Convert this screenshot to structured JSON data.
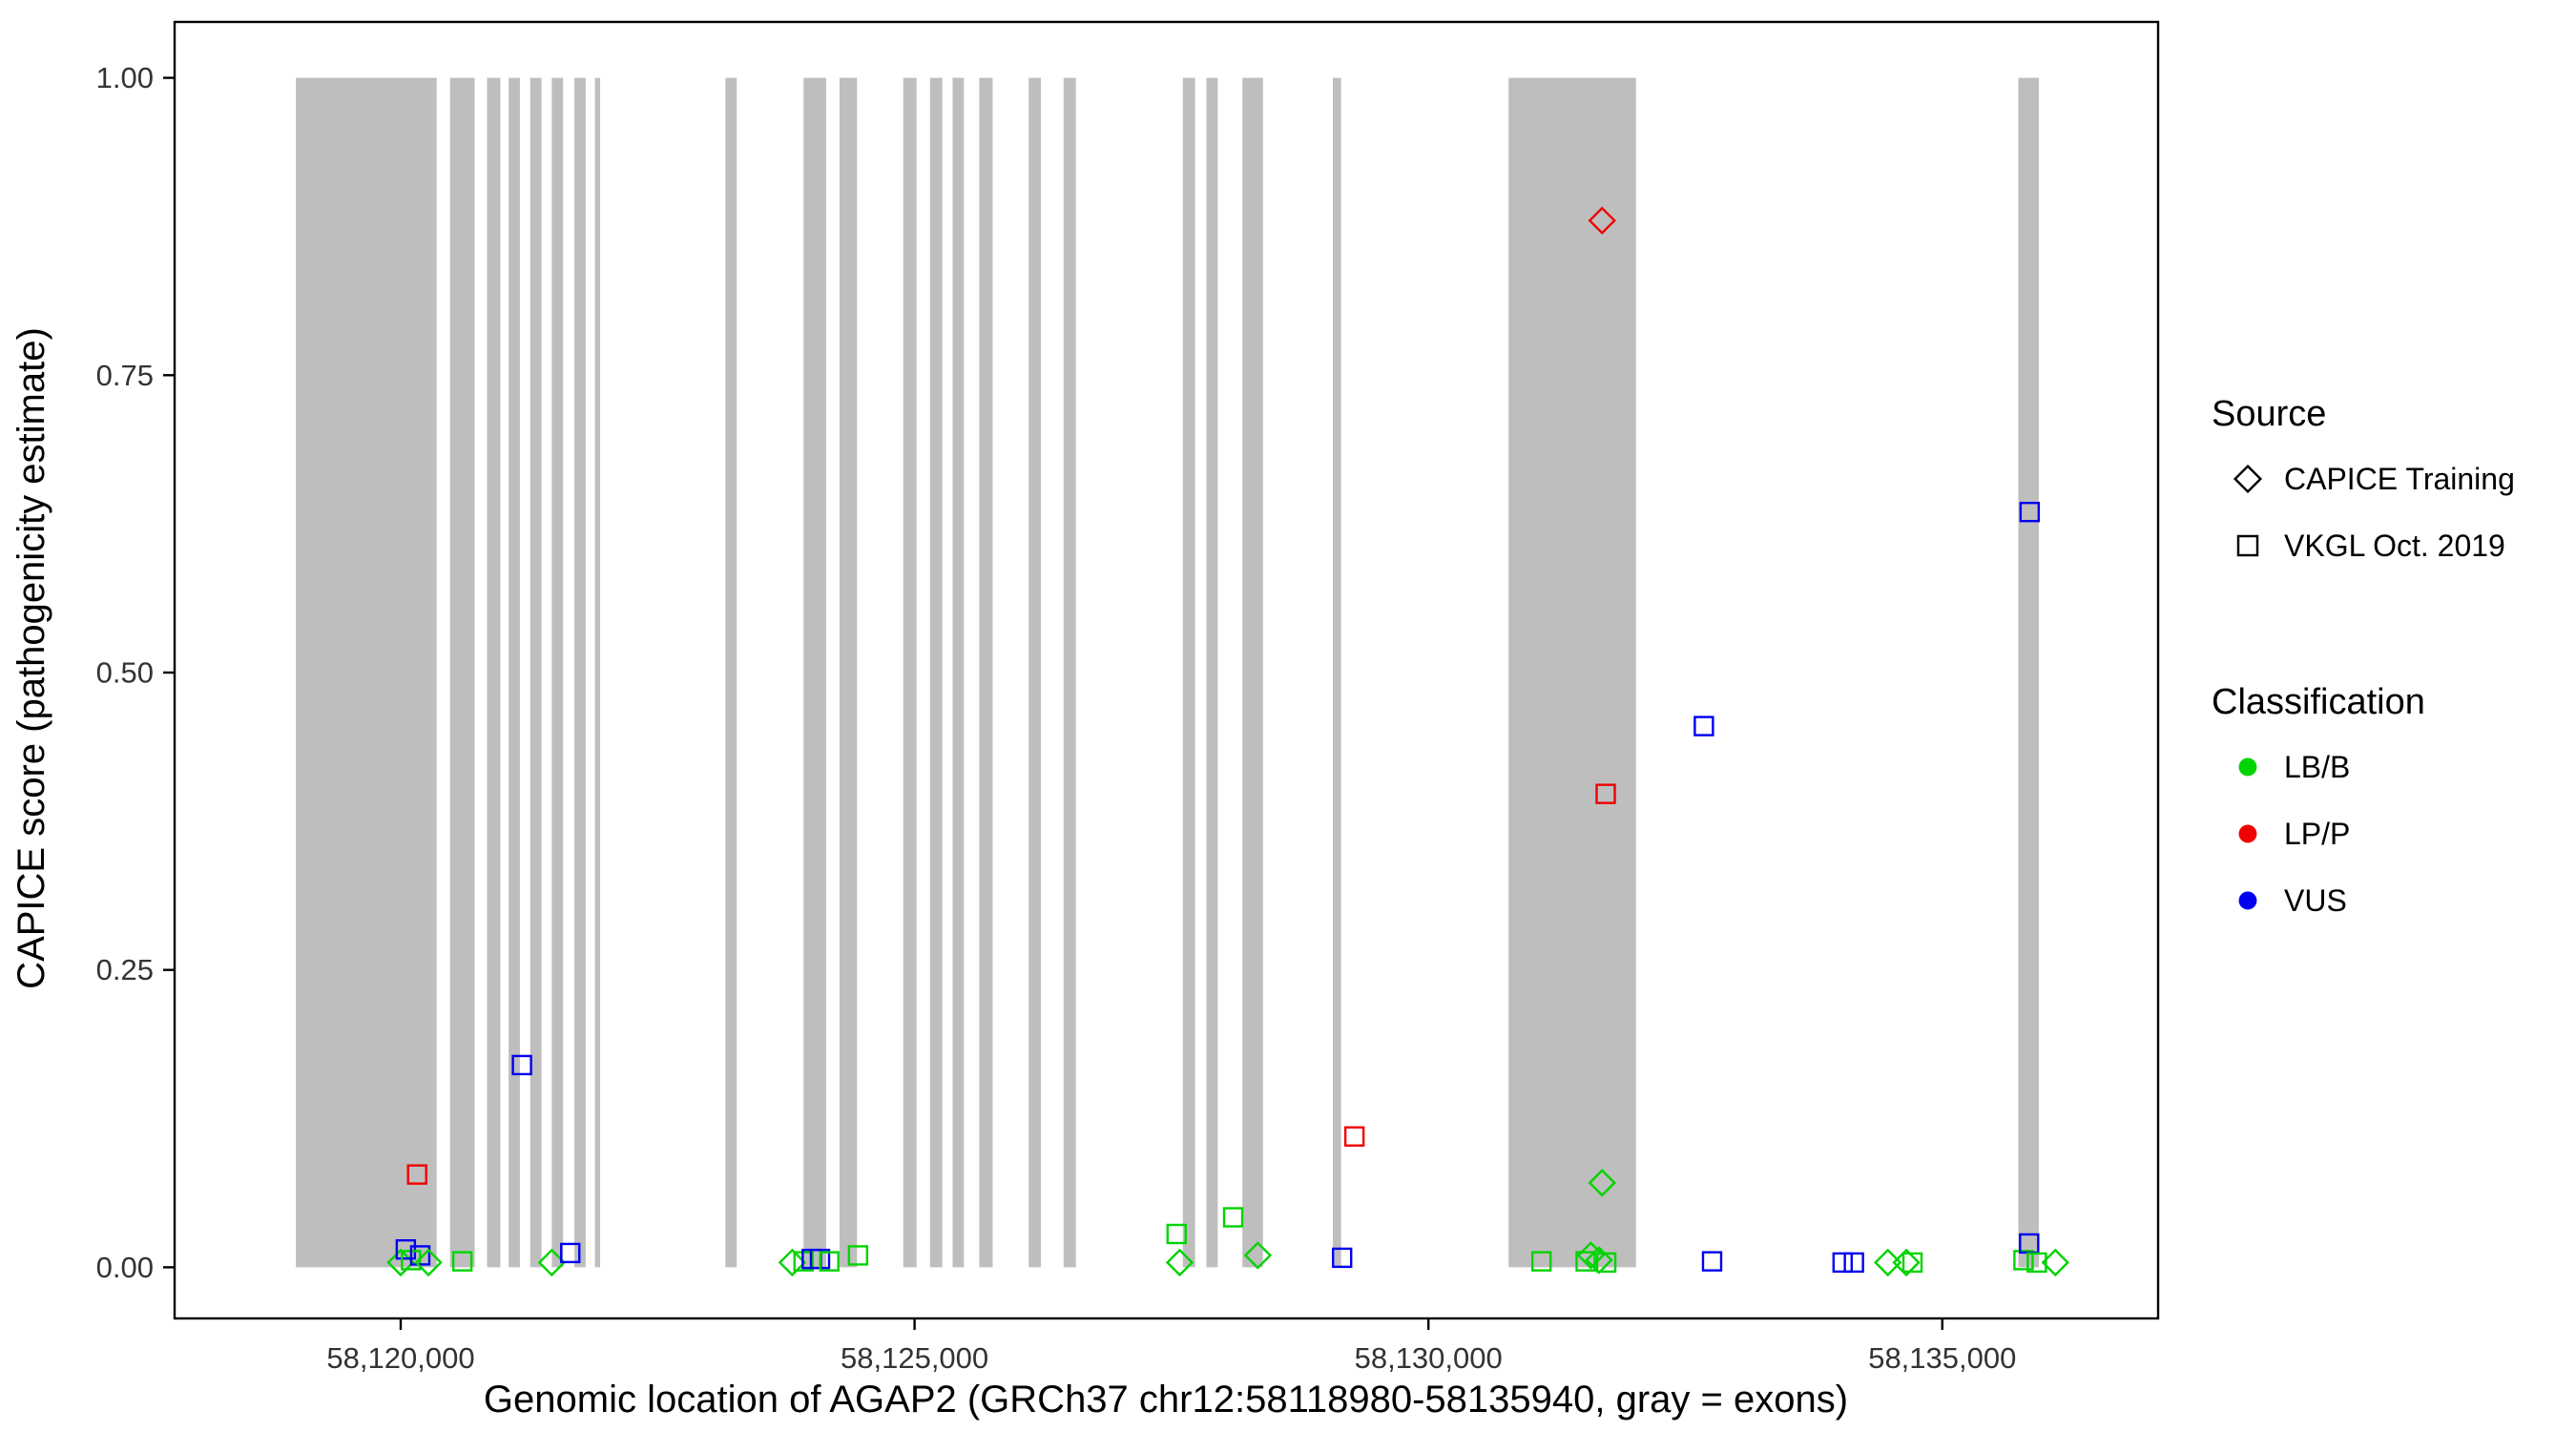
{
  "legend": {
    "source": {
      "title": "Source",
      "items": [
        {
          "shape": "diamond",
          "label": "CAPICE Training"
        },
        {
          "shape": "square",
          "label": "VKGL Oct. 2019"
        }
      ]
    },
    "classification": {
      "title": "Classification",
      "items": [
        {
          "color_key": "LB/B",
          "label": "LB/B"
        },
        {
          "color_key": "LP/P",
          "label": "LP/P"
        },
        {
          "color_key": "VUS",
          "label": "VUS"
        }
      ]
    }
  },
  "chart_data": {
    "type": "scatter",
    "title": "",
    "xlabel": "Genomic location of AGAP2 (GRCh37 chr12:58118980-58135940, gray = exons)",
    "ylabel": "CAPICE score (pathogenicity estimate)",
    "xlim": [
      58117800,
      58137100
    ],
    "ylim": [
      -0.043,
      1.047
    ],
    "x_tick_values": [
      58120000,
      58125000,
      58130000,
      58135000
    ],
    "x_tick_labels": [
      "58,120,000",
      "58,125,000",
      "58,130,000",
      "58,135,000"
    ],
    "y_tick_values": [
      0,
      0.25,
      0.5,
      0.75,
      1.0
    ],
    "y_tick_labels": [
      "0.00",
      "0.25",
      "0.50",
      "0.75",
      "1.00"
    ],
    "legend_position": "right",
    "grid": false,
    "exon_color": "#BEBEBE",
    "colors": {
      "LB/B": "#00D400",
      "LP/P": "#F00000",
      "VUS": "#0000F0"
    },
    "shapes": {
      "CAPICE Training": "diamond",
      "VKGL Oct. 2019": "square"
    },
    "exons": [
      [
        58118980,
        58120350
      ],
      [
        58120480,
        58120720
      ],
      [
        58120840,
        58120970
      ],
      [
        58121050,
        58121160
      ],
      [
        58121260,
        58121370
      ],
      [
        58121470,
        58121580
      ],
      [
        58121690,
        58121800
      ],
      [
        58121890,
        58121940
      ],
      [
        58123160,
        58123270
      ],
      [
        58123920,
        58124140
      ],
      [
        58124270,
        58124440
      ],
      [
        58124890,
        58125020
      ],
      [
        58125150,
        58125270
      ],
      [
        58125370,
        58125480
      ],
      [
        58125630,
        58125760
      ],
      [
        58126110,
        58126230
      ],
      [
        58126450,
        58126570
      ],
      [
        58127610,
        58127730
      ],
      [
        58127840,
        58127950
      ],
      [
        58128190,
        58128390
      ],
      [
        58129070,
        58129150
      ],
      [
        58130780,
        58132020
      ],
      [
        58135740,
        58135940
      ]
    ],
    "points": [
      {
        "x": 58120000,
        "y": 0.004,
        "source": "CAPICE Training",
        "classification": "LB/B"
      },
      {
        "x": 58120050,
        "y": 0.015,
        "source": "VKGL Oct. 2019",
        "classification": "VUS"
      },
      {
        "x": 58120100,
        "y": 0.006,
        "source": "VKGL Oct. 2019",
        "classification": "LB/B"
      },
      {
        "x": 58120160,
        "y": 0.078,
        "source": "VKGL Oct. 2019",
        "classification": "LP/P"
      },
      {
        "x": 58120190,
        "y": 0.01,
        "source": "VKGL Oct. 2019",
        "classification": "VUS"
      },
      {
        "x": 58120270,
        "y": 0.004,
        "source": "CAPICE Training",
        "classification": "LB/B"
      },
      {
        "x": 58120600,
        "y": 0.005,
        "source": "VKGL Oct. 2019",
        "classification": "LB/B"
      },
      {
        "x": 58121180,
        "y": 0.17,
        "source": "VKGL Oct. 2019",
        "classification": "VUS"
      },
      {
        "x": 58121470,
        "y": 0.004,
        "source": "CAPICE Training",
        "classification": "LB/B"
      },
      {
        "x": 58121650,
        "y": 0.012,
        "source": "VKGL Oct. 2019",
        "classification": "VUS"
      },
      {
        "x": 58123810,
        "y": 0.004,
        "source": "CAPICE Training",
        "classification": "LB/B"
      },
      {
        "x": 58123920,
        "y": 0.005,
        "source": "VKGL Oct. 2019",
        "classification": "LB/B"
      },
      {
        "x": 58124000,
        "y": 0.007,
        "source": "VKGL Oct. 2019",
        "classification": "VUS"
      },
      {
        "x": 58124080,
        "y": 0.007,
        "source": "VKGL Oct. 2019",
        "classification": "VUS"
      },
      {
        "x": 58124170,
        "y": 0.005,
        "source": "VKGL Oct. 2019",
        "classification": "LB/B"
      },
      {
        "x": 58124450,
        "y": 0.01,
        "source": "VKGL Oct. 2019",
        "classification": "LB/B"
      },
      {
        "x": 58127550,
        "y": 0.028,
        "source": "VKGL Oct. 2019",
        "classification": "LB/B"
      },
      {
        "x": 58127580,
        "y": 0.004,
        "source": "CAPICE Training",
        "classification": "LB/B"
      },
      {
        "x": 58128100,
        "y": 0.042,
        "source": "VKGL Oct. 2019",
        "classification": "LB/B"
      },
      {
        "x": 58128340,
        "y": 0.01,
        "source": "CAPICE Training",
        "classification": "LB/B"
      },
      {
        "x": 58129160,
        "y": 0.008,
        "source": "VKGL Oct. 2019",
        "classification": "VUS"
      },
      {
        "x": 58129280,
        "y": 0.11,
        "source": "VKGL Oct. 2019",
        "classification": "LP/P"
      },
      {
        "x": 58131100,
        "y": 0.005,
        "source": "VKGL Oct. 2019",
        "classification": "LB/B"
      },
      {
        "x": 58131530,
        "y": 0.005,
        "source": "VKGL Oct. 2019",
        "classification": "LB/B"
      },
      {
        "x": 58131580,
        "y": 0.01,
        "source": "CAPICE Training",
        "classification": "LB/B"
      },
      {
        "x": 58131660,
        "y": 0.006,
        "source": "CAPICE Training",
        "classification": "LB/B"
      },
      {
        "x": 58131690,
        "y": 0.88,
        "source": "CAPICE Training",
        "classification": "LP/P"
      },
      {
        "x": 58131690,
        "y": 0.071,
        "source": "CAPICE Training",
        "classification": "LB/B"
      },
      {
        "x": 58131725,
        "y": 0.398,
        "source": "VKGL Oct. 2019",
        "classification": "LP/P"
      },
      {
        "x": 58131730,
        "y": 0.004,
        "source": "VKGL Oct. 2019",
        "classification": "LB/B"
      },
      {
        "x": 58132680,
        "y": 0.455,
        "source": "VKGL Oct. 2019",
        "classification": "VUS"
      },
      {
        "x": 58132760,
        "y": 0.005,
        "source": "VKGL Oct. 2019",
        "classification": "VUS"
      },
      {
        "x": 58134030,
        "y": 0.004,
        "source": "VKGL Oct. 2019",
        "classification": "VUS"
      },
      {
        "x": 58134140,
        "y": 0.004,
        "source": "VKGL Oct. 2019",
        "classification": "VUS"
      },
      {
        "x": 58134470,
        "y": 0.004,
        "source": "CAPICE Training",
        "classification": "LB/B"
      },
      {
        "x": 58134650,
        "y": 0.004,
        "source": "CAPICE Training",
        "classification": "LB/B"
      },
      {
        "x": 58134710,
        "y": 0.004,
        "source": "VKGL Oct. 2019",
        "classification": "LB/B"
      },
      {
        "x": 58135790,
        "y": 0.006,
        "source": "VKGL Oct. 2019",
        "classification": "LB/B"
      },
      {
        "x": 58135845,
        "y": 0.02,
        "source": "VKGL Oct. 2019",
        "classification": "VUS"
      },
      {
        "x": 58135850,
        "y": 0.635,
        "source": "VKGL Oct. 2019",
        "classification": "VUS"
      },
      {
        "x": 58135920,
        "y": 0.004,
        "source": "VKGL Oct. 2019",
        "classification": "LB/B"
      },
      {
        "x": 58136100,
        "y": 0.004,
        "source": "CAPICE Training",
        "classification": "LB/B"
      }
    ]
  }
}
